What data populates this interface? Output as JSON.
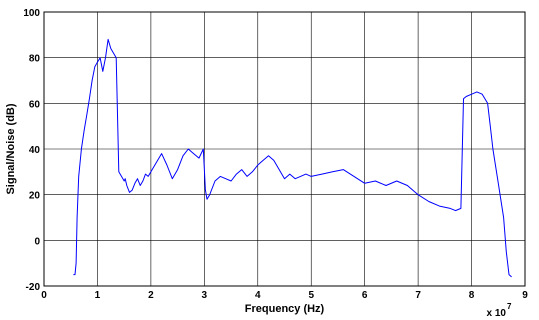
{
  "chart_data": {
    "type": "line",
    "title": "",
    "xlabel": "Frequency (Hz)",
    "ylabel": "Signal/Noise (dB)",
    "x_multiplier_label": "x 10",
    "x_multiplier_exponent": "7",
    "xlim": [
      0,
      9
    ],
    "ylim": [
      -20,
      100
    ],
    "xticks": [
      0,
      1,
      2,
      3,
      4,
      5,
      6,
      7,
      8,
      9
    ],
    "yticks": [
      -20,
      0,
      20,
      40,
      60,
      80,
      100
    ],
    "xtick_labels": [
      "0",
      "1",
      "2",
      "3",
      "4",
      "5",
      "6",
      "7",
      "8",
      "9"
    ],
    "ytick_labels": [
      "-20",
      "0",
      "20",
      "40",
      "60",
      "80",
      "100"
    ],
    "grid": true,
    "series": [
      {
        "color": "#0000ff",
        "x": [
          0.55,
          0.58,
          0.6,
          0.62,
          0.65,
          0.7,
          0.75,
          0.8,
          0.85,
          0.9,
          0.95,
          1.0,
          1.05,
          1.1,
          1.15,
          1.2,
          1.25,
          1.3,
          1.35,
          1.4,
          1.45,
          1.5,
          1.52,
          1.55,
          1.6,
          1.65,
          1.7,
          1.75,
          1.8,
          1.85,
          1.9,
          1.95,
          2.0,
          2.1,
          2.2,
          2.3,
          2.4,
          2.5,
          2.6,
          2.7,
          2.8,
          2.9,
          2.98,
          3.02,
          3.05,
          3.1,
          3.2,
          3.3,
          3.4,
          3.5,
          3.6,
          3.7,
          3.8,
          3.9,
          4.0,
          4.1,
          4.2,
          4.3,
          4.4,
          4.5,
          4.6,
          4.7,
          4.8,
          4.9,
          5.0,
          5.2,
          5.4,
          5.6,
          5.8,
          6.0,
          6.2,
          6.4,
          6.6,
          6.8,
          7.0,
          7.2,
          7.4,
          7.6,
          7.7,
          7.8,
          7.85,
          7.9,
          8.0,
          8.1,
          8.2,
          8.3,
          8.35,
          8.4,
          8.5,
          8.6,
          8.65,
          8.7,
          8.75
        ],
        "y": [
          -15,
          -15,
          -10,
          10,
          28,
          40,
          48,
          55,
          62,
          70,
          76,
          78,
          80,
          74,
          80,
          88,
          84,
          82,
          80,
          30,
          28,
          26,
          27,
          24,
          21,
          22,
          25,
          27,
          24,
          26,
          29,
          28,
          30,
          34,
          38,
          33,
          27,
          31,
          37,
          40,
          38,
          36,
          40,
          22,
          18,
          20,
          26,
          28,
          27,
          26,
          29,
          31,
          28,
          30,
          33,
          35,
          37,
          35,
          31,
          27,
          29,
          27,
          28,
          29,
          28,
          29,
          30,
          31,
          28,
          25,
          26,
          24,
          26,
          24,
          20,
          17,
          15,
          14,
          13,
          14,
          62,
          63,
          64,
          65,
          64,
          60,
          50,
          40,
          25,
          10,
          -5,
          -15,
          -16
        ]
      }
    ]
  }
}
